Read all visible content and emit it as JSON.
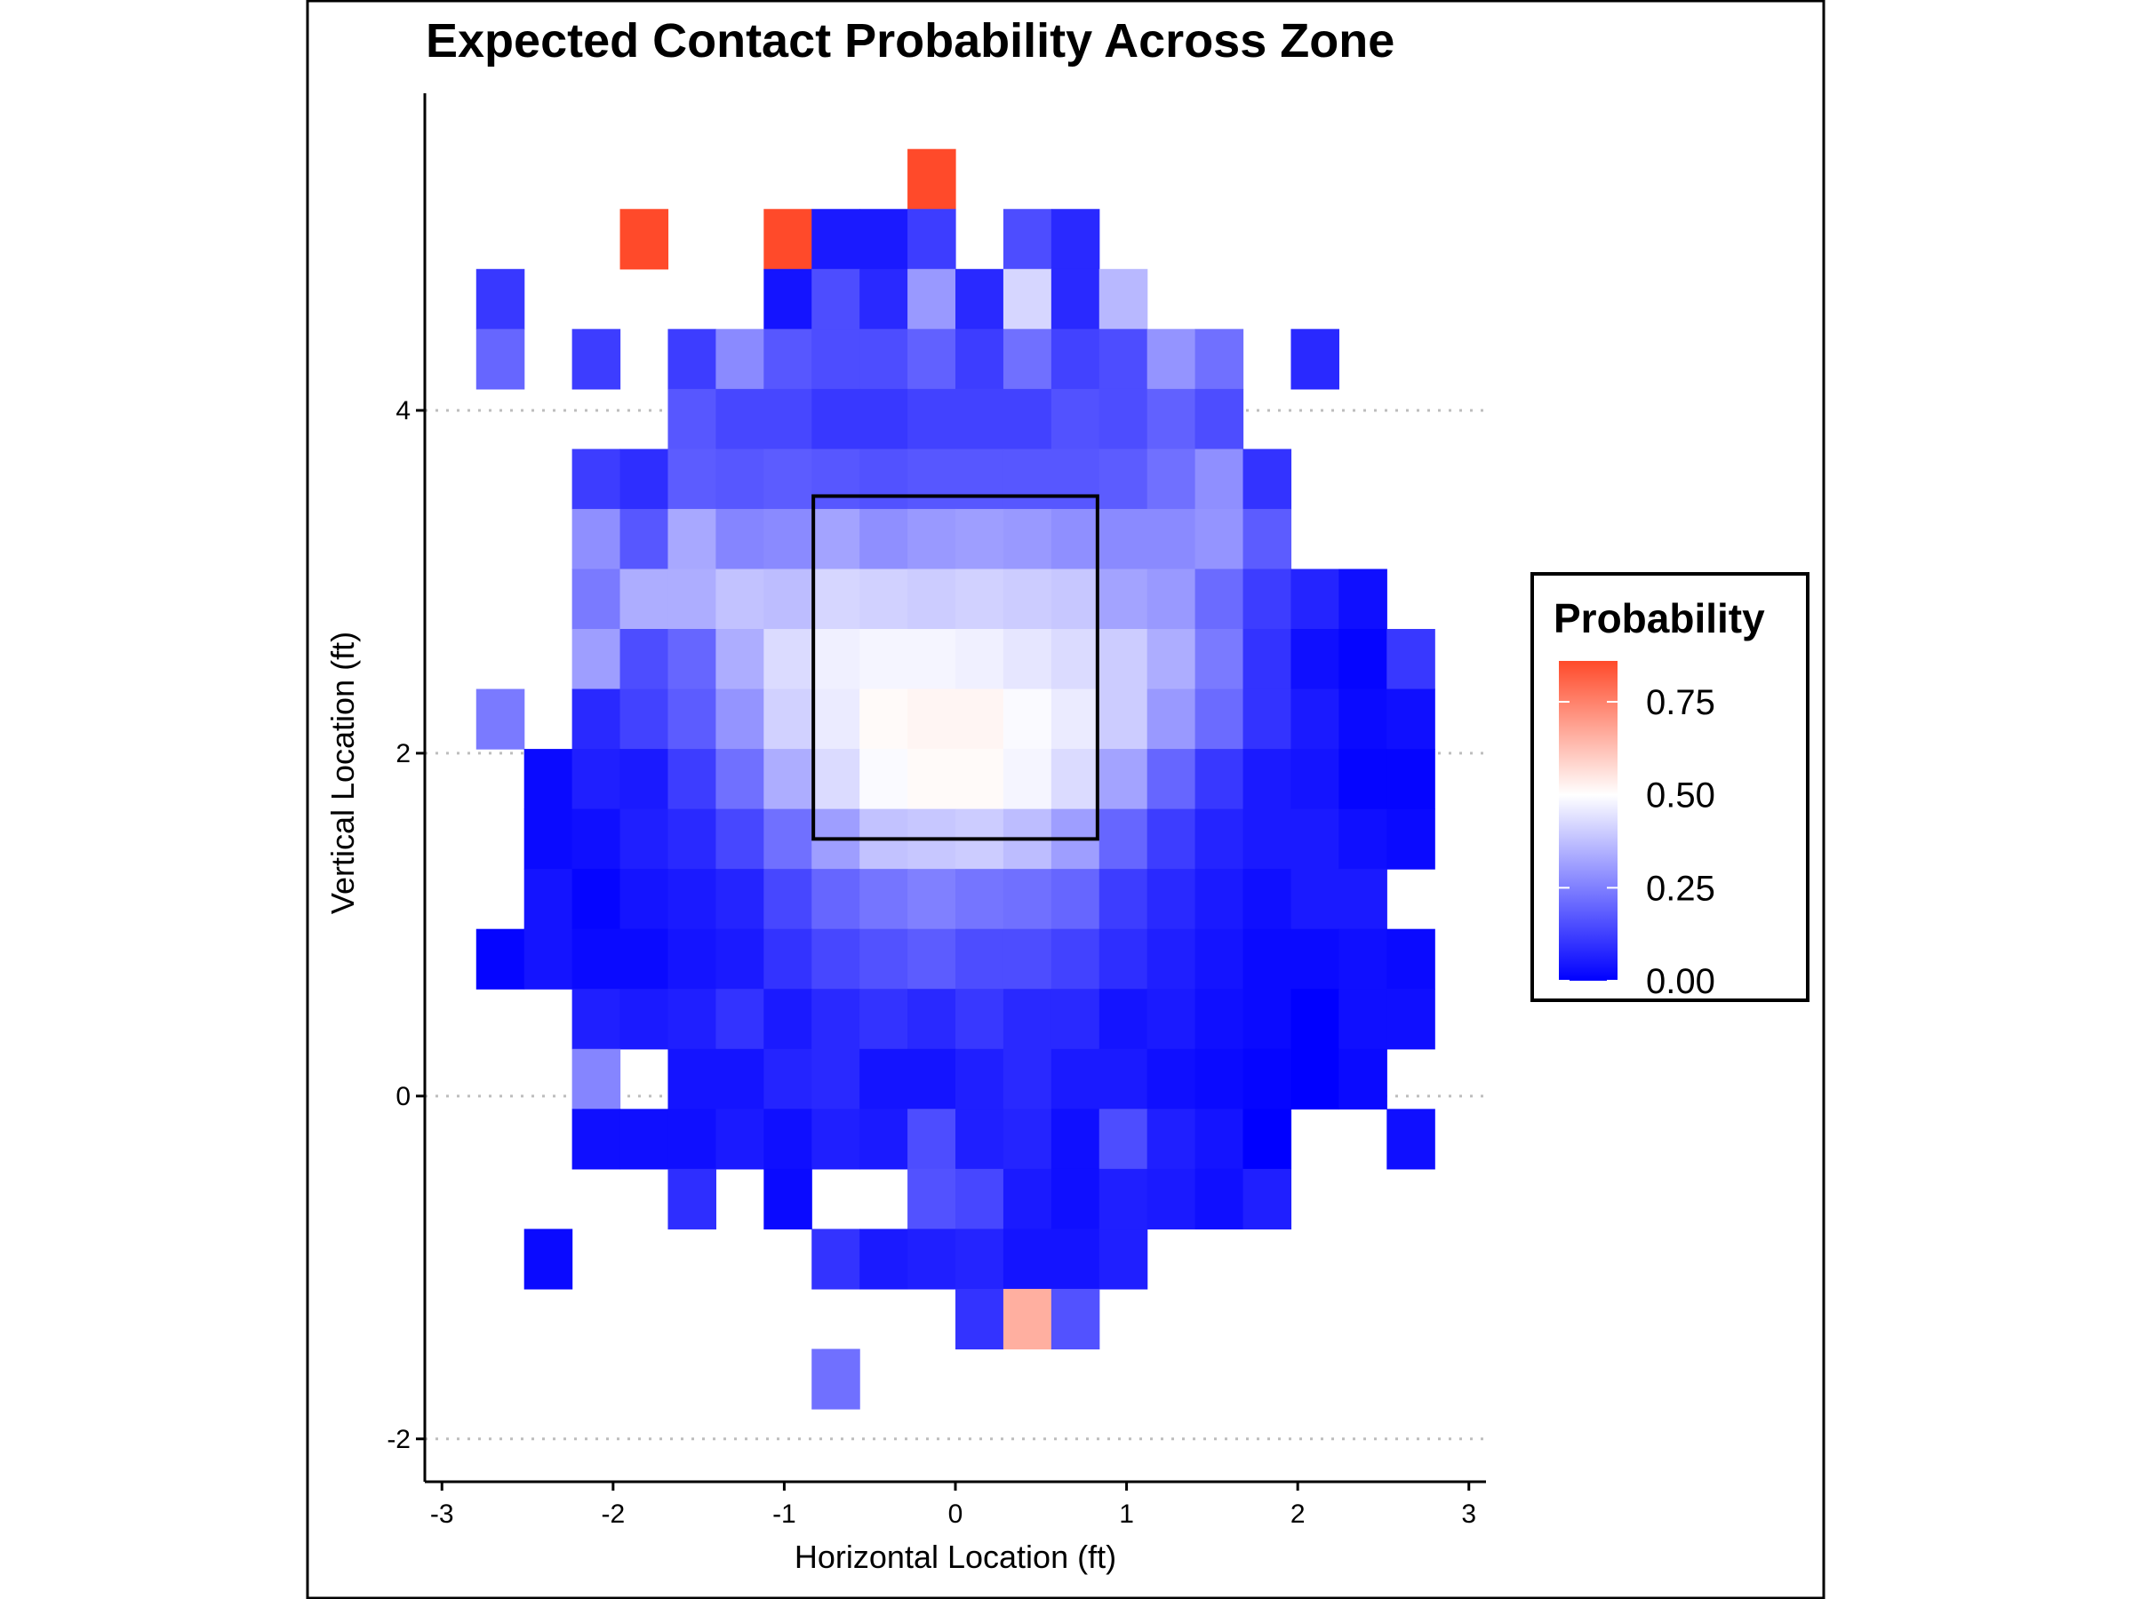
{
  "chart_data": {
    "type": "heatmap",
    "title": "Expected Contact Probability Across Zone",
    "xlabel": "Horizontal Location (ft)",
    "ylabel": "Vertical Location (ft)",
    "xlim": [
      -3.1,
      3.1
    ],
    "ylim": [
      -2.25,
      5.85
    ],
    "x_ticks": [
      -3,
      -2,
      -1,
      0,
      1,
      2,
      3
    ],
    "x_tick_labels": [
      "-3",
      "-2",
      "-1",
      "0",
      "1",
      "2",
      "3"
    ],
    "y_ticks": [
      -2,
      0,
      2,
      4
    ],
    "y_tick_labels": [
      "-2",
      "0",
      "2",
      "4"
    ],
    "grid": "horizontal dotted lines at y ticks",
    "bin_width": 0.28,
    "bin_height": 0.35,
    "x_centers": [
      -2.66,
      -2.38,
      -2.1,
      -1.82,
      -1.54,
      -1.26,
      -0.98,
      -0.7,
      -0.42,
      -0.14,
      0.14,
      0.42,
      0.7,
      0.98,
      1.26,
      1.54,
      1.82,
      2.1,
      2.38,
      2.66
    ],
    "y_centers": [
      5.35,
      5.0,
      4.65,
      4.3,
      3.95,
      3.6,
      3.25,
      2.9,
      2.55,
      2.2,
      1.85,
      1.5,
      1.15,
      0.8,
      0.45,
      0.1,
      -0.25,
      -0.6,
      -0.95,
      -1.3,
      -1.65
    ],
    "grid_values": [
      [
        null,
        null,
        null,
        null,
        null,
        null,
        null,
        null,
        null,
        0.86,
        null,
        null,
        null,
        null,
        null,
        null,
        null,
        null,
        null,
        null
      ],
      [
        null,
        null,
        null,
        0.86,
        null,
        null,
        0.86,
        0.05,
        0.05,
        0.12,
        null,
        0.15,
        0.08,
        null,
        null,
        null,
        null,
        null,
        null,
        null
      ],
      [
        0.11,
        null,
        null,
        null,
        null,
        null,
        0.04,
        0.15,
        0.08,
        0.3,
        0.08,
        0.42,
        0.08,
        0.36,
        null,
        null,
        null,
        null,
        null,
        null
      ],
      [
        0.2,
        null,
        0.12,
        null,
        0.12,
        0.27,
        0.17,
        0.15,
        0.15,
        0.19,
        0.12,
        0.22,
        0.13,
        0.15,
        0.29,
        0.22,
        null,
        0.08,
        null,
        null
      ],
      [
        null,
        null,
        null,
        null,
        0.17,
        0.14,
        0.14,
        0.11,
        0.11,
        0.13,
        0.13,
        0.13,
        0.16,
        0.15,
        0.19,
        0.15,
        null,
        null,
        null,
        null
      ],
      [
        null,
        null,
        0.12,
        0.09,
        0.18,
        0.17,
        0.18,
        0.17,
        0.16,
        0.17,
        0.17,
        0.17,
        0.17,
        0.18,
        0.22,
        0.28,
        0.1,
        null,
        null,
        null
      ],
      [
        null,
        null,
        0.28,
        0.17,
        0.33,
        0.26,
        0.27,
        0.32,
        0.28,
        0.3,
        0.31,
        0.3,
        0.28,
        0.27,
        0.27,
        0.29,
        0.18,
        null,
        null,
        null
      ],
      [
        null,
        null,
        0.24,
        0.34,
        0.34,
        0.38,
        0.37,
        0.42,
        0.41,
        0.4,
        0.41,
        0.4,
        0.39,
        0.32,
        0.3,
        0.21,
        0.12,
        0.07,
        0.03,
        null
      ],
      [
        null,
        null,
        0.31,
        0.15,
        0.2,
        0.34,
        0.43,
        0.47,
        0.48,
        0.48,
        0.47,
        0.45,
        0.43,
        0.4,
        0.34,
        0.24,
        0.1,
        0.03,
        0.01,
        0.11
      ],
      [
        0.24,
        null,
        0.08,
        0.13,
        0.18,
        0.29,
        0.41,
        0.46,
        0.51,
        0.52,
        0.52,
        0.49,
        0.46,
        0.4,
        0.3,
        0.21,
        0.1,
        0.05,
        0.02,
        0.03
      ],
      [
        null,
        0.02,
        0.06,
        0.05,
        0.12,
        0.22,
        0.34,
        0.43,
        0.49,
        0.51,
        0.51,
        0.48,
        0.43,
        0.32,
        0.2,
        0.11,
        0.05,
        0.04,
        0.01,
        0.01
      ],
      [
        null,
        0.02,
        0.03,
        0.06,
        0.08,
        0.14,
        0.22,
        0.31,
        0.38,
        0.39,
        0.4,
        0.37,
        0.31,
        0.2,
        0.12,
        0.07,
        0.05,
        0.05,
        0.03,
        0.02
      ],
      [
        null,
        0.04,
        0.01,
        0.04,
        0.05,
        0.07,
        0.14,
        0.2,
        0.23,
        0.25,
        0.23,
        0.22,
        0.2,
        0.12,
        0.08,
        0.05,
        0.03,
        0.05,
        0.05,
        null
      ],
      [
        0.01,
        0.04,
        0.02,
        0.02,
        0.04,
        0.05,
        0.1,
        0.14,
        0.16,
        0.18,
        0.15,
        0.15,
        0.13,
        0.09,
        0.06,
        0.04,
        0.02,
        0.02,
        0.03,
        0.02
      ],
      [
        null,
        null,
        0.06,
        0.05,
        0.06,
        0.1,
        0.05,
        0.08,
        0.1,
        0.08,
        0.11,
        0.08,
        0.08,
        0.04,
        0.05,
        0.03,
        0.02,
        0.0,
        0.03,
        0.03
      ],
      [
        null,
        null,
        0.26,
        null,
        0.04,
        0.04,
        0.07,
        0.08,
        0.04,
        0.04,
        0.06,
        0.08,
        0.05,
        0.05,
        0.03,
        0.02,
        0.01,
        0.0,
        0.02,
        null
      ],
      [
        null,
        null,
        0.03,
        0.03,
        0.03,
        0.05,
        0.03,
        0.06,
        0.05,
        0.15,
        0.06,
        0.07,
        0.03,
        0.15,
        0.06,
        0.04,
        0.0,
        null,
        null,
        0.03
      ],
      [
        null,
        null,
        null,
        null,
        0.09,
        null,
        0.02,
        null,
        null,
        0.16,
        0.14,
        0.05,
        0.03,
        0.06,
        0.05,
        0.03,
        0.06,
        null,
        null,
        null
      ],
      [
        null,
        0.02,
        null,
        null,
        null,
        null,
        null,
        0.1,
        0.05,
        0.06,
        0.07,
        0.04,
        0.04,
        0.06,
        null,
        null,
        null,
        null,
        null,
        null
      ],
      [
        null,
        null,
        null,
        null,
        null,
        null,
        null,
        null,
        null,
        null,
        0.1,
        0.66,
        0.16,
        null,
        null,
        null,
        null,
        null,
        null,
        null
      ],
      [
        null,
        null,
        null,
        null,
        null,
        null,
        null,
        0.22,
        null,
        null,
        null,
        null,
        null,
        null,
        null,
        null,
        null,
        null,
        null,
        null
      ]
    ],
    "strike_zone": {
      "x_min": -0.83,
      "x_max": 0.83,
      "y_min": 1.5,
      "y_max": 3.5
    },
    "legend": {
      "title": "Probability",
      "placement": "right",
      "ticks": [
        0.75,
        0.5,
        0.25,
        0.0
      ],
      "tick_labels": [
        "0.75",
        "0.50",
        "0.25",
        "0.00"
      ],
      "range": [
        0,
        0.86
      ]
    },
    "colors": {
      "low": "#0000ff",
      "mid": "#ffffff",
      "high": "#ff4a2a",
      "midpoint": 0.5
    }
  }
}
